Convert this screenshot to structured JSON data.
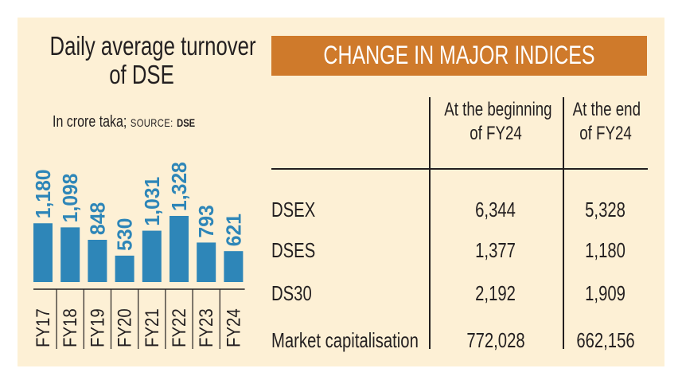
{
  "chart_data": {
    "type": "bar",
    "title": "Daily average turnover of DSE",
    "title_lines": [
      "Daily average turnover",
      "of DSE"
    ],
    "subtitle": "In crore taka;",
    "source_label": "SOURCE:",
    "source_value": "DSE",
    "categories": [
      "FY17",
      "FY18",
      "FY19",
      "FY20",
      "FY21",
      "FY22",
      "FY23",
      "FY24"
    ],
    "values": [
      1180,
      1098,
      848,
      530,
      1031,
      1328,
      793,
      621
    ],
    "value_labels": [
      "1,180",
      "1,098",
      "848",
      "530",
      "1,031",
      "1,328",
      "793",
      "621"
    ],
    "ylim": [
      0,
      1400
    ],
    "bar_color": "#2e86b8",
    "label_color": "#2e86b8"
  },
  "table": {
    "title": "CHANGE IN MAJOR INDICES",
    "header_color": "#cf7a2b",
    "columns": [
      {
        "lines": [
          "At the beginning",
          "of FY24"
        ]
      },
      {
        "lines": [
          "At the end",
          "of FY24"
        ]
      }
    ],
    "rows": [
      {
        "label": "DSEX",
        "begin": "6,344",
        "end": "5,328"
      },
      {
        "label": "DSES",
        "begin": "1,377",
        "end": "1,180"
      },
      {
        "label": "DS30",
        "begin": "2,192",
        "end": "1,909"
      },
      {
        "label": "Market capitalisation",
        "begin": "772,028",
        "end": "662,156"
      }
    ]
  },
  "background_color": "#fdf0d5"
}
